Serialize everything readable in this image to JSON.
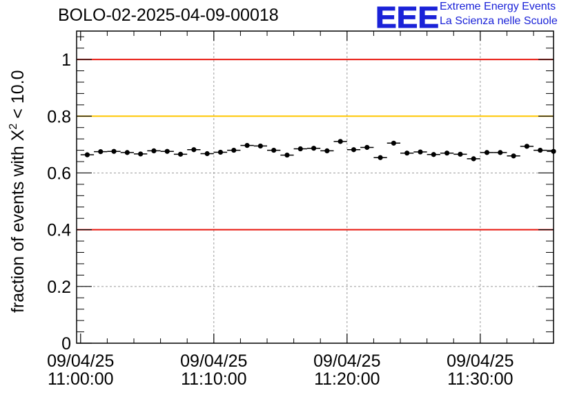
{
  "chart_data": {
    "type": "scatter",
    "title": "BOLO-02-2025-04-09-00018",
    "ylabel_prefix": "fraction of events with ",
    "ylabel_symbol": "X",
    "ylabel_superscript": "2",
    "ylabel_suffix": " < 10.0",
    "ylim": [
      0,
      1.1
    ],
    "y_ticks": [
      0,
      0.2,
      0.4,
      0.6,
      0.8,
      1
    ],
    "y_tick_labels": [
      "0",
      "0.2",
      "0.4",
      "0.6",
      "0.8",
      "1"
    ],
    "x_unit": "minutes after 11:00:00",
    "xlim": [
      -0.3,
      35.5
    ],
    "x_ticks": [
      {
        "value": 0,
        "date": "09/04/25",
        "time": "11:00:00"
      },
      {
        "value": 10,
        "date": "09/04/25",
        "time": "11:10:00"
      },
      {
        "value": 20,
        "date": "09/04/25",
        "time": "11:20:00"
      },
      {
        "value": 30,
        "date": "09/04/25",
        "time": "11:30:00"
      }
    ],
    "grid": true,
    "bin_width_minutes": 1,
    "x": [
      0.5,
      1.5,
      2.5,
      3.5,
      4.5,
      5.5,
      6.5,
      7.5,
      8.5,
      9.5,
      10.5,
      11.5,
      12.5,
      13.5,
      14.5,
      15.5,
      16.5,
      17.5,
      18.5,
      19.5,
      20.5,
      21.5,
      22.5,
      23.5,
      24.5,
      25.5,
      26.5,
      27.5,
      28.5,
      29.5,
      30.5,
      31.5,
      32.5,
      33.5,
      34.5,
      35.5
    ],
    "y": [
      0.664,
      0.675,
      0.676,
      0.672,
      0.667,
      0.678,
      0.676,
      0.666,
      0.682,
      0.668,
      0.673,
      0.68,
      0.697,
      0.695,
      0.68,
      0.663,
      0.685,
      0.687,
      0.678,
      0.711,
      0.682,
      0.69,
      0.654,
      0.705,
      0.67,
      0.674,
      0.665,
      0.67,
      0.666,
      0.65,
      0.672,
      0.672,
      0.66,
      0.694,
      0.68,
      0.676
    ],
    "y_err": [
      0.008,
      0.008,
      0.008,
      0.008,
      0.008,
      0.008,
      0.008,
      0.008,
      0.008,
      0.008,
      0.008,
      0.008,
      0.008,
      0.008,
      0.008,
      0.008,
      0.008,
      0.008,
      0.008,
      0.008,
      0.008,
      0.008,
      0.008,
      0.008,
      0.008,
      0.008,
      0.008,
      0.008,
      0.008,
      0.008,
      0.008,
      0.008,
      0.008,
      0.008,
      0.008,
      0.008
    ],
    "reference_lines": [
      {
        "name": "upper-limit",
        "y": 1.0,
        "color": "#e8140c"
      },
      {
        "name": "warning",
        "y": 0.8,
        "color": "#ffc700"
      },
      {
        "name": "lower-limit",
        "y": 0.4,
        "color": "#e8140c"
      }
    ],
    "marker_color": "#000000"
  },
  "logo": {
    "acronym": "EEE",
    "line1": "Extreme Energy Events",
    "line2": "La Scienza nelle Scuole",
    "color": "#1a22d8"
  }
}
